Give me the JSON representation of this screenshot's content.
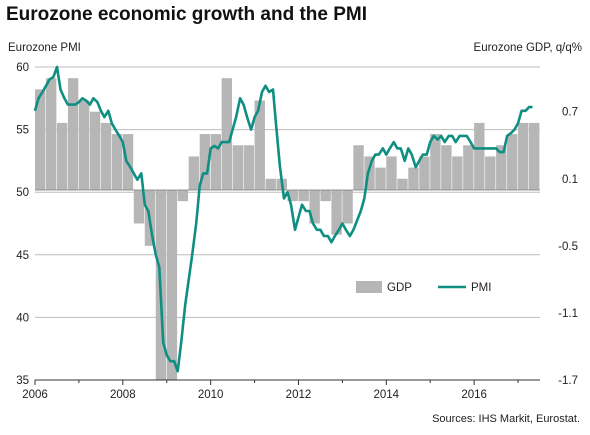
{
  "title": "Eurozone economic growth and the PMI",
  "source": "Sources: IHS Markit, Eurostat.",
  "colors": {
    "gdp": "#b6b6b6",
    "pmi": "#0f8f82",
    "grid": "#bdbdbd",
    "axis": "#333333"
  },
  "chart_data": {
    "type": "bar+line",
    "title": "Eurozone economic growth and the PMI",
    "ylabel_left": "Eurozone PMI",
    "ylabel_right": "Eurozone GDP, q/q%",
    "ylim_left": [
      35,
      60
    ],
    "yticks_left": [
      "35",
      "40",
      "45",
      "50",
      "55",
      "60"
    ],
    "ylim_right": [
      -1.7,
      1.1
    ],
    "yticks_right": [
      "-1.7",
      "-1.1",
      "-0.5",
      "0.1",
      "0.7"
    ],
    "xlim": [
      2006,
      2017.5
    ],
    "xticks": [
      "2006",
      "2008",
      "2010",
      "2012",
      "2014",
      "2016"
    ],
    "grid": true,
    "legend_position": "center-right",
    "legend": [
      "GDP",
      "PMI"
    ],
    "series": [
      {
        "name": "GDP",
        "kind": "bar",
        "axis": "right",
        "x": [
          2006.0,
          2006.25,
          2006.5,
          2006.75,
          2007.0,
          2007.25,
          2007.5,
          2007.75,
          2008.0,
          2008.25,
          2008.5,
          2008.75,
          2009.0,
          2009.25,
          2009.5,
          2009.75,
          2010.0,
          2010.25,
          2010.5,
          2010.75,
          2011.0,
          2011.25,
          2011.5,
          2011.75,
          2012.0,
          2012.25,
          2012.5,
          2012.75,
          2013.0,
          2013.25,
          2013.5,
          2013.75,
          2014.0,
          2014.25,
          2014.5,
          2014.75,
          2015.0,
          2015.25,
          2015.5,
          2015.75,
          2016.0,
          2016.25,
          2016.5,
          2016.75,
          2017.0,
          2017.25
        ],
        "values": [
          0.9,
          1.0,
          0.6,
          1.0,
          0.8,
          0.7,
          0.6,
          0.5,
          0.5,
          -0.3,
          -0.5,
          -1.7,
          -1.7,
          -0.1,
          0.3,
          0.5,
          0.5,
          1.0,
          0.4,
          0.4,
          0.8,
          0.1,
          0.1,
          -0.1,
          -0.1,
          -0.3,
          -0.1,
          -0.4,
          -0.3,
          0.4,
          0.3,
          0.2,
          0.3,
          0.1,
          0.2,
          0.3,
          0.5,
          0.4,
          0.3,
          0.4,
          0.6,
          0.3,
          0.4,
          0.5,
          0.6,
          0.6
        ]
      },
      {
        "name": "PMI",
        "kind": "line",
        "axis": "left",
        "x": [
          2006.0,
          2006.08,
          2006.17,
          2006.25,
          2006.33,
          2006.42,
          2006.5,
          2006.58,
          2006.67,
          2006.75,
          2006.83,
          2006.92,
          2007.0,
          2007.08,
          2007.17,
          2007.25,
          2007.33,
          2007.42,
          2007.5,
          2007.58,
          2007.67,
          2007.75,
          2007.83,
          2007.92,
          2008.0,
          2008.08,
          2008.17,
          2008.25,
          2008.33,
          2008.42,
          2008.5,
          2008.58,
          2008.67,
          2008.75,
          2008.83,
          2008.92,
          2009.0,
          2009.08,
          2009.17,
          2009.25,
          2009.33,
          2009.42,
          2009.5,
          2009.58,
          2009.67,
          2009.75,
          2009.83,
          2009.92,
          2010.0,
          2010.08,
          2010.17,
          2010.25,
          2010.33,
          2010.42,
          2010.5,
          2010.58,
          2010.67,
          2010.75,
          2010.83,
          2010.92,
          2011.0,
          2011.08,
          2011.17,
          2011.25,
          2011.33,
          2011.42,
          2011.5,
          2011.58,
          2011.67,
          2011.75,
          2011.83,
          2011.92,
          2012.0,
          2012.08,
          2012.17,
          2012.25,
          2012.33,
          2012.42,
          2012.5,
          2012.58,
          2012.67,
          2012.75,
          2012.83,
          2012.92,
          2013.0,
          2013.08,
          2013.17,
          2013.25,
          2013.33,
          2013.42,
          2013.5,
          2013.58,
          2013.67,
          2013.75,
          2013.83,
          2013.92,
          2014.0,
          2014.08,
          2014.17,
          2014.25,
          2014.33,
          2014.42,
          2014.5,
          2014.58,
          2014.67,
          2014.75,
          2014.83,
          2014.92,
          2015.0,
          2015.08,
          2015.17,
          2015.25,
          2015.33,
          2015.42,
          2015.5,
          2015.58,
          2015.67,
          2015.75,
          2015.83,
          2015.92,
          2016.0,
          2016.08,
          2016.17,
          2016.25,
          2016.33,
          2016.42,
          2016.5,
          2016.58,
          2016.67,
          2016.75,
          2016.83,
          2016.92,
          2017.0,
          2017.08,
          2017.17,
          2017.25,
          2017.33
        ],
        "values": [
          56.5,
          57.5,
          58.0,
          58.5,
          59.0,
          59.2,
          60.0,
          58.2,
          57.5,
          57.0,
          57.0,
          57.0,
          57.2,
          57.5,
          57.3,
          57.0,
          57.5,
          57.2,
          56.5,
          56.0,
          56.5,
          55.5,
          55.0,
          54.5,
          54.0,
          52.5,
          52.0,
          51.5,
          51.0,
          51.5,
          49.0,
          48.5,
          46.5,
          45.0,
          44.0,
          38.0,
          37.0,
          36.5,
          36.5,
          35.7,
          38.0,
          41.0,
          43.0,
          45.0,
          47.5,
          50.5,
          51.5,
          51.5,
          53.5,
          53.7,
          53.5,
          54.0,
          54.0,
          54.0,
          55.0,
          56.0,
          57.5,
          57.0,
          56.0,
          55.0,
          56.0,
          56.5,
          58.0,
          58.5,
          58.0,
          58.2,
          55.0,
          52.0,
          49.5,
          50.0,
          49.0,
          47.0,
          48.0,
          49.0,
          48.5,
          48.5,
          47.5,
          47.0,
          47.0,
          46.5,
          46.5,
          46.0,
          46.5,
          47.0,
          47.5,
          47.0,
          46.5,
          47.0,
          47.7,
          48.5,
          49.5,
          51.5,
          52.5,
          53.0,
          53.0,
          53.5,
          53.0,
          53.5,
          54.0,
          53.5,
          53.5,
          52.5,
          53.5,
          53.0,
          52.0,
          52.5,
          53.0,
          53.0,
          54.0,
          54.5,
          54.2,
          54.5,
          54.0,
          54.5,
          54.5,
          54.0,
          54.5,
          54.5,
          54.5,
          54.0,
          53.5,
          53.5,
          53.5,
          53.5,
          53.5,
          53.5,
          53.5,
          53.2,
          53.2,
          54.5,
          54.7,
          55.0,
          55.5,
          56.5,
          56.5,
          56.8,
          56.8
        ]
      }
    ]
  }
}
